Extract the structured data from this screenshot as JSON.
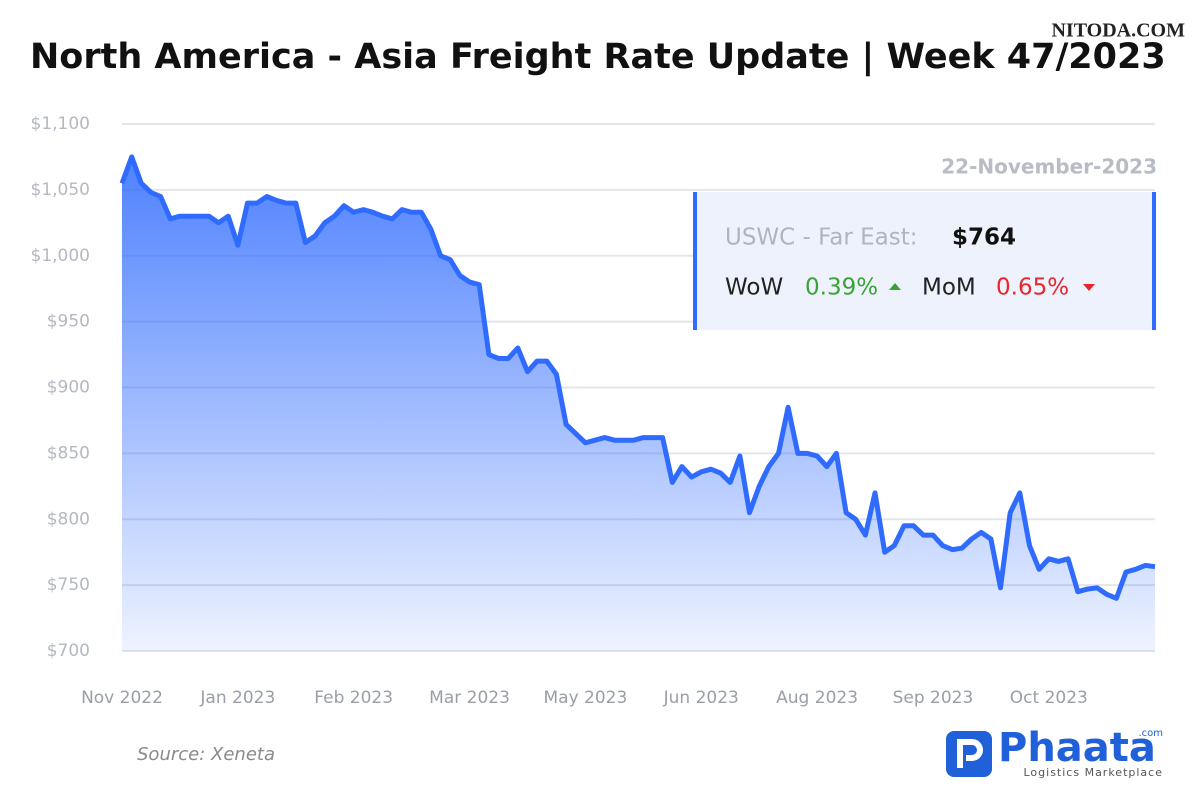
{
  "chart_data": {
    "type": "area",
    "title": "North America - Asia Freight Rate Update | Week 47/2023",
    "watermark": "NITODA.COM",
    "source": "Source: Xeneta",
    "brand": {
      "name": "Phaata",
      "suffix": ".com",
      "tagline": "Logistics Marketplace"
    },
    "annotation": {
      "date": "22-November-2023",
      "route": "USWC - Far East:",
      "price": "$764",
      "wow_label": "WoW",
      "wow": "0.39%",
      "mom_label": "MoM",
      "mom": "0.65%"
    },
    "categories": [
      "Nov 2022",
      null,
      null,
      null,
      null,
      null,
      null,
      null,
      null,
      null,
      null,
      null,
      "Jan 2023",
      null,
      null,
      null,
      null,
      null,
      null,
      null,
      null,
      null,
      null,
      null,
      "Feb 2023",
      null,
      null,
      null,
      null,
      null,
      null,
      null,
      null,
      null,
      null,
      null,
      "Mar 2023",
      null,
      null,
      null,
      null,
      null,
      null,
      null,
      null,
      null,
      null,
      null,
      "May 2023",
      null,
      null,
      null,
      null,
      null,
      null,
      null,
      null,
      null,
      null,
      null,
      "Jun 2023",
      null,
      null,
      null,
      null,
      null,
      null,
      null,
      null,
      null,
      null,
      null,
      "Aug 2023",
      null,
      null,
      null,
      null,
      null,
      null,
      null,
      null,
      null,
      null,
      null,
      "Sep 2023",
      null,
      null,
      null,
      null,
      null,
      null,
      null,
      null,
      null,
      null,
      null,
      "Oct 2023",
      null,
      null,
      null,
      null,
      null,
      null,
      null,
      null,
      null,
      null,
      null
    ],
    "series": [
      {
        "name": "USWC - Far East",
        "color": "#2f6bff",
        "values": [
          1055,
          1075,
          1055,
          1048,
          1045,
          1028,
          1030,
          1030,
          1030,
          1030,
          1025,
          1030,
          1008,
          1040,
          1040,
          1045,
          1042,
          1040,
          1040,
          1010,
          1015,
          1025,
          1030,
          1038,
          1033,
          1035,
          1033,
          1030,
          1028,
          1035,
          1033,
          1033,
          1020,
          1000,
          997,
          985,
          980,
          978,
          925,
          922,
          922,
          930,
          912,
          920,
          920,
          910,
          872,
          865,
          858,
          860,
          862,
          860,
          860,
          860,
          862,
          862,
          862,
          828,
          840,
          832,
          836,
          838,
          835,
          828,
          848,
          805,
          825,
          840,
          850,
          885,
          850,
          850,
          848,
          840,
          850,
          805,
          800,
          788,
          820,
          775,
          780,
          795,
          795,
          788,
          788,
          780,
          777,
          778,
          785,
          790,
          785,
          748,
          805,
          820,
          780,
          762,
          770,
          768,
          770,
          745,
          747,
          748,
          743,
          740,
          760,
          762,
          765,
          764
        ]
      }
    ],
    "ylim": [
      700,
      1100
    ],
    "yticks": [
      {
        "value": 700,
        "label": "$700"
      },
      {
        "value": 750,
        "label": "$750"
      },
      {
        "value": 800,
        "label": "$800"
      },
      {
        "value": 850,
        "label": "$850"
      },
      {
        "value": 900,
        "label": "$900"
      },
      {
        "value": 950,
        "label": "$950"
      },
      {
        "value": 1000,
        "label": "$1,000"
      },
      {
        "value": 1050,
        "label": "$1,050"
      },
      {
        "value": 1100,
        "label": "$1,100"
      }
    ],
    "grid": true
  }
}
